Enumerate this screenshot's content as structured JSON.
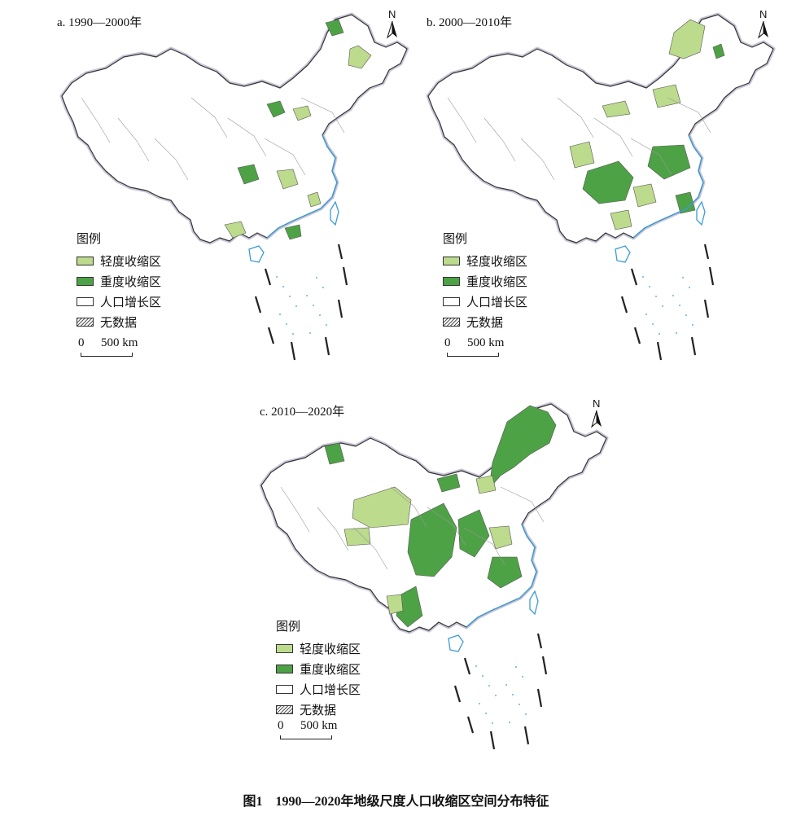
{
  "figure": {
    "caption": "图1　1990—2020年地级尺度人口收缩区空间分布特征"
  },
  "legend": {
    "title": "图例",
    "items": [
      {
        "label": "轻度收缩区",
        "color": "#bcdb8c"
      },
      {
        "label": "重度收缩区",
        "color": "#4ea246"
      },
      {
        "label": "人口增长区",
        "color": "#ffffff"
      },
      {
        "label": "无数据",
        "pattern": "hatched"
      }
    ]
  },
  "scale": {
    "zero": "0",
    "distance": "500 km"
  },
  "north_arrow": {
    "label": "N"
  },
  "colors": {
    "light": "#bcdb8c",
    "heavy": "#4ea246",
    "border": "#9d96b6",
    "sea": "#3b9bd6"
  },
  "panels": [
    {
      "title": "a. 1990—2000年"
    },
    {
      "title": "b. 2000—2010年"
    },
    {
      "title": "c. 2010—2020年"
    }
  ]
}
